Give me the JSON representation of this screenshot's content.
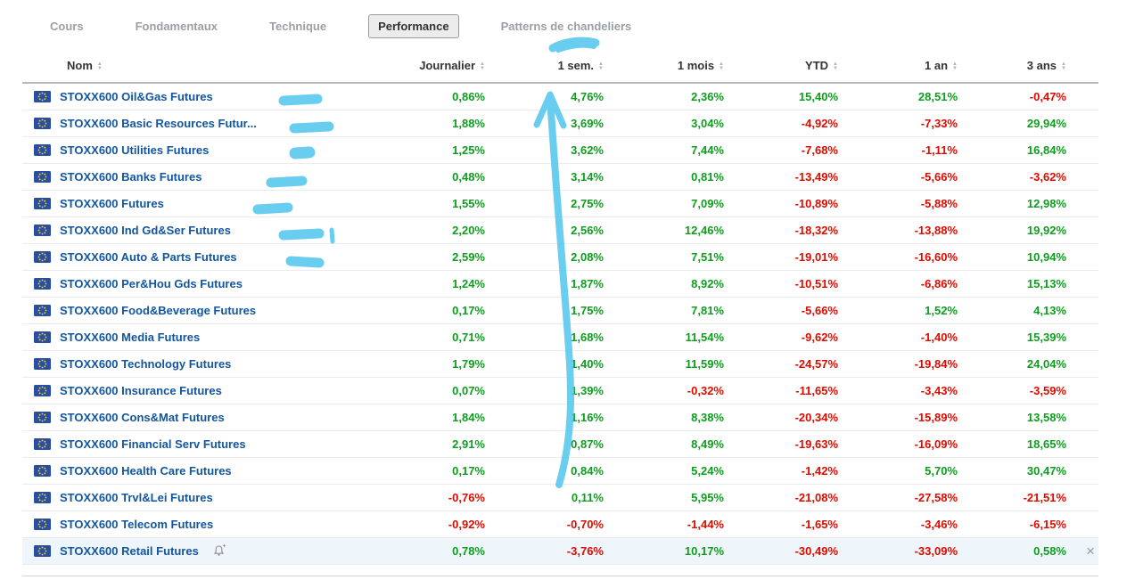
{
  "tabs": [
    {
      "label": "Cours",
      "active": false
    },
    {
      "label": "Fondamentaux",
      "active": false
    },
    {
      "label": "Technique",
      "active": false
    },
    {
      "label": "Performance",
      "active": true
    },
    {
      "label": "Patterns de chandeliers",
      "active": false
    }
  ],
  "table": {
    "columns": [
      "Nom",
      "Journalier",
      "1 sem.",
      "1 mois",
      "YTD",
      "1 an",
      "3 ans"
    ],
    "rows": [
      {
        "name": "STOXX600 Oil&Gas Futures",
        "values": [
          "0,86%",
          "4,76%",
          "2,36%",
          "15,40%",
          "28,51%",
          "-0,47%"
        ]
      },
      {
        "name": "STOXX600 Basic Resources Futur...",
        "values": [
          "1,88%",
          "3,69%",
          "3,04%",
          "-4,92%",
          "-7,33%",
          "29,94%"
        ]
      },
      {
        "name": "STOXX600 Utilities Futures",
        "values": [
          "1,25%",
          "3,62%",
          "7,44%",
          "-7,68%",
          "-1,11%",
          "16,84%"
        ]
      },
      {
        "name": "STOXX600 Banks Futures",
        "values": [
          "0,48%",
          "3,14%",
          "0,81%",
          "-13,49%",
          "-5,66%",
          "-3,62%"
        ]
      },
      {
        "name": "STOXX600 Futures",
        "values": [
          "1,55%",
          "2,75%",
          "7,09%",
          "-10,89%",
          "-5,88%",
          "12,98%"
        ]
      },
      {
        "name": "STOXX600 Ind Gd&Ser Futures",
        "values": [
          "2,20%",
          "2,56%",
          "12,46%",
          "-18,32%",
          "-13,88%",
          "19,92%"
        ]
      },
      {
        "name": "STOXX600 Auto & Parts Futures",
        "values": [
          "2,59%",
          "2,08%",
          "7,51%",
          "-19,01%",
          "-16,60%",
          "10,94%"
        ]
      },
      {
        "name": "STOXX600 Per&Hou Gds Futures",
        "values": [
          "1,24%",
          "1,87%",
          "8,92%",
          "-10,51%",
          "-6,86%",
          "15,13%"
        ]
      },
      {
        "name": "STOXX600 Food&Beverage Futures",
        "values": [
          "0,17%",
          "1,75%",
          "7,81%",
          "-5,66%",
          "1,52%",
          "4,13%"
        ]
      },
      {
        "name": "STOXX600 Media Futures",
        "values": [
          "0,71%",
          "1,68%",
          "11,54%",
          "-9,62%",
          "-1,40%",
          "15,39%"
        ]
      },
      {
        "name": "STOXX600 Technology Futures",
        "values": [
          "1,79%",
          "1,40%",
          "11,59%",
          "-24,57%",
          "-19,84%",
          "24,04%"
        ]
      },
      {
        "name": "STOXX600 Insurance Futures",
        "values": [
          "0,07%",
          "1,39%",
          "-0,32%",
          "-11,65%",
          "-3,43%",
          "-3,59%"
        ]
      },
      {
        "name": "STOXX600 Cons&Mat Futures",
        "values": [
          "1,84%",
          "1,16%",
          "8,38%",
          "-20,34%",
          "-15,89%",
          "13,58%"
        ]
      },
      {
        "name": "STOXX600 Financial Serv Futures",
        "values": [
          "2,91%",
          "0,87%",
          "8,49%",
          "-19,63%",
          "-16,09%",
          "18,65%"
        ]
      },
      {
        "name": "STOXX600 Health Care Futures",
        "values": [
          "0,17%",
          "0,84%",
          "5,24%",
          "-1,42%",
          "5,70%",
          "30,47%"
        ]
      },
      {
        "name": "STOXX600 Trvl&Lei Futures",
        "values": [
          "-0,76%",
          "0,11%",
          "5,95%",
          "-21,08%",
          "-27,58%",
          "-21,51%"
        ]
      },
      {
        "name": "STOXX600 Telecom Futures",
        "values": [
          "-0,92%",
          "-0,70%",
          "-1,44%",
          "-1,65%",
          "-3,46%",
          "-6,15%"
        ]
      },
      {
        "name": "STOXX600 Retail Futures",
        "values": [
          "0,78%",
          "-3,76%",
          "10,17%",
          "-30,49%",
          "-33,09%",
          "0,58%"
        ],
        "selected": true,
        "alert": true
      }
    ]
  },
  "icons": {
    "close": "×",
    "sort_up": "▲",
    "sort_down": "▼",
    "flag": "eu-flag-icon",
    "alert": "alert-bell-plus-icon"
  },
  "colors": {
    "positive": "#0f9d1f",
    "negative": "#dc0c00",
    "instrument": "#1256a0",
    "annotation": "#55c7ef",
    "tab_inactive": "#9aa0a6"
  }
}
